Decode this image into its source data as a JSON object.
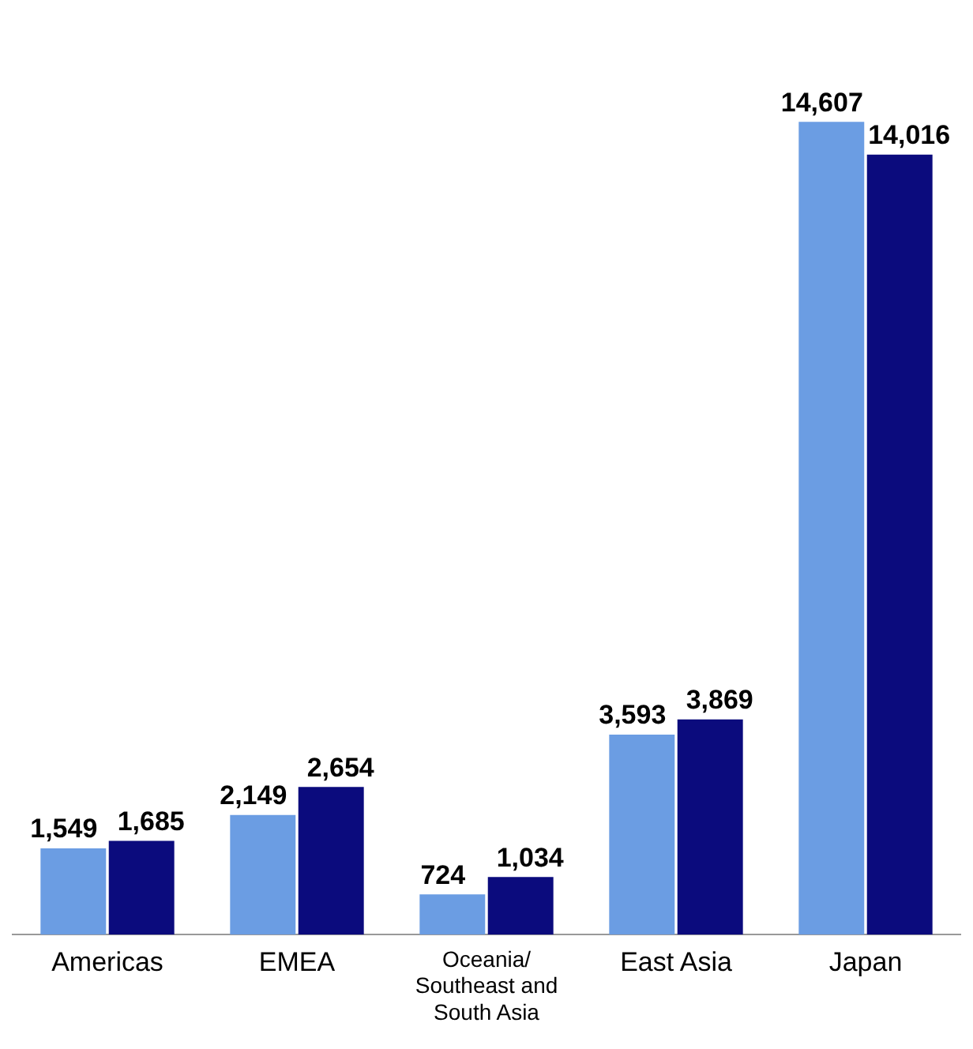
{
  "chart_data": {
    "type": "bar",
    "categories": [
      "Americas",
      "EMEA",
      "Oceania/ Southeast and South Asia",
      "East Asia",
      "Japan"
    ],
    "series": [
      {
        "color": "#6b9de3",
        "values": [
          1549,
          2149,
          724,
          3593,
          14607
        ],
        "value_labels": [
          "1,549",
          "2,149",
          "724",
          "3,593",
          "14,607"
        ]
      },
      {
        "color": "#0b0b7d",
        "values": [
          1685,
          2654,
          1034,
          3869,
          14016
        ],
        "value_labels": [
          "1,685",
          "2,654",
          "1,034",
          "3,869",
          "14,016"
        ]
      }
    ],
    "legend": false,
    "grid": false,
    "tick_labels": "x"
  }
}
